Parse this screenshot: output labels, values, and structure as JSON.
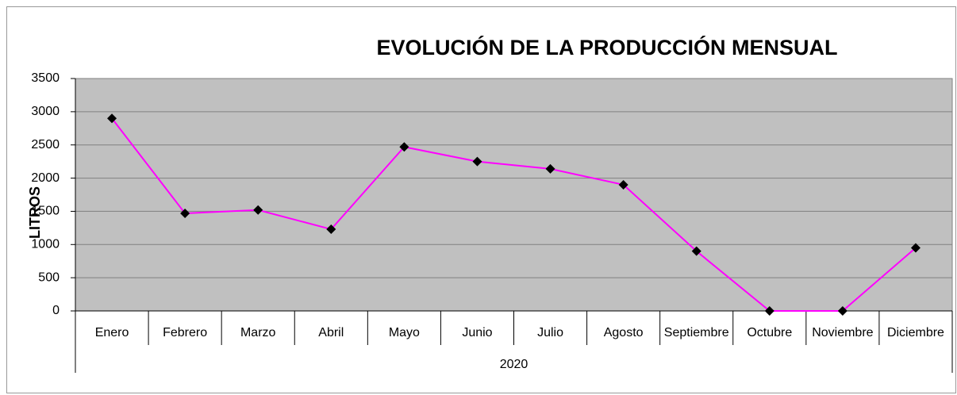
{
  "chart_data": {
    "type": "line",
    "title": "EVOLUCIÓN DE LA PRODUCCIÓN MENSUAL",
    "y_label": "LITROS",
    "category_group": "2020",
    "categories": [
      "Enero",
      "Febrero",
      "Marzo",
      "Abril",
      "Mayo",
      "Junio",
      "Julio",
      "Agosto",
      "Septiembre",
      "Octubre",
      "Noviembre",
      "Diciembre"
    ],
    "series": [
      {
        "name": "LITROS",
        "color": "#ff00ff",
        "marker_color": "#000000",
        "values": [
          2900,
          1470,
          1520,
          1230,
          2470,
          2250,
          2140,
          1900,
          900,
          0,
          0,
          950
        ]
      }
    ],
    "ylim": [
      0,
      3500
    ],
    "yticks": [
      0,
      500,
      1000,
      1500,
      2000,
      2500,
      3000,
      3500
    ],
    "grid": true,
    "plot_background": "#c0c0c0"
  }
}
